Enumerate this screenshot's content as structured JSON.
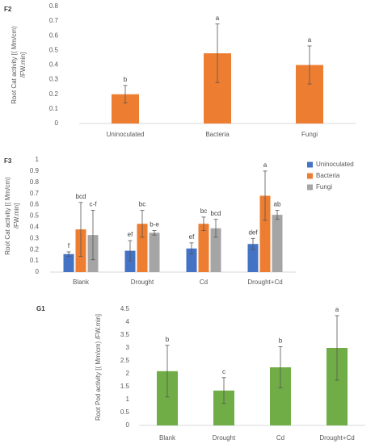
{
  "chart_data": [
    {
      "type": "bar",
      "panel": "F2",
      "ylabel": [
        "Root Cat activity [( Mm/cm)",
        "/FW.min]"
      ],
      "categories": [
        "Uninoculated",
        "Bacteria",
        "Fungi"
      ],
      "series": [
        {
          "color": "#ed7d31",
          "values": [
            0.2,
            0.48,
            0.4
          ],
          "errors": [
            0.06,
            0.2,
            0.13
          ],
          "letters": [
            "b",
            "a",
            "a"
          ]
        }
      ],
      "ylim": [
        0,
        0.8
      ],
      "yticks": [
        0,
        0.1,
        0.2,
        0.3,
        0.4,
        0.5,
        0.6,
        0.7,
        0.8
      ],
      "grid": false
    },
    {
      "type": "bar",
      "panel": "F3",
      "ylabel": [
        "Root Cat activity [( Mm/cm)",
        "/FW.min]"
      ],
      "categories": [
        "Blank",
        "Drought",
        "Cd",
        "Drought+Cd"
      ],
      "series": [
        {
          "name": "Uninoculated",
          "color": "#4472c4",
          "values": [
            0.16,
            0.19,
            0.21,
            0.25
          ],
          "errors": [
            0.02,
            0.09,
            0.05,
            0.05
          ],
          "letters": [
            "f",
            "ef",
            "ef",
            "def"
          ]
        },
        {
          "name": "Bacteria",
          "color": "#ed7d31",
          "values": [
            0.38,
            0.43,
            0.43,
            0.68
          ],
          "errors": [
            0.24,
            0.12,
            0.06,
            0.22
          ],
          "letters": [
            "bcd",
            "bc",
            "bc",
            "a"
          ]
        },
        {
          "name": "Fungi",
          "color": "#a5a5a5",
          "values": [
            0.33,
            0.35,
            0.39,
            0.51
          ],
          "errors": [
            0.22,
            0.02,
            0.08,
            0.04
          ],
          "letters": [
            "c-f",
            "b-e",
            "bcd",
            "ab"
          ]
        }
      ],
      "ylim": [
        0,
        1
      ],
      "yticks": [
        0,
        0.1,
        0.2,
        0.3,
        0.4,
        0.5,
        0.6,
        0.7,
        0.8,
        0.9,
        1
      ],
      "grid": false,
      "legend": "right"
    },
    {
      "type": "bar",
      "panel": "G1",
      "ylabel": [
        "Root Pod activity [( Mm/cm) /FW.min]"
      ],
      "categories": [
        "Blank",
        "Drought",
        "Cd",
        "Drought+Cd"
      ],
      "series": [
        {
          "color": "#70ad47",
          "values": [
            2.1,
            1.35,
            2.25,
            3.0
          ],
          "errors": [
            1.0,
            0.5,
            0.8,
            1.25
          ],
          "letters": [
            "b",
            "c",
            "b",
            "a"
          ]
        }
      ],
      "ylim": [
        0,
        4.5
      ],
      "yticks": [
        0,
        0.5,
        1,
        1.5,
        2,
        2.5,
        3,
        3.5,
        4,
        4.5
      ],
      "grid": false
    }
  ]
}
